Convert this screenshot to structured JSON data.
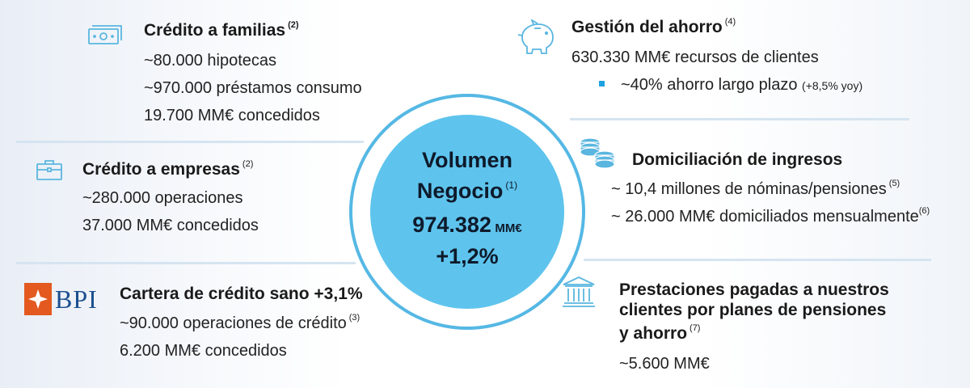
{
  "center": {
    "title_line1": "Volumen",
    "title_line2": "Negocio",
    "note": "(1)",
    "value": "974.382",
    "unit": "MM€",
    "change": "+1,2%"
  },
  "credito_familias": {
    "title": "Crédito a familias",
    "note": "(2)",
    "lines": [
      "~80.000 hipotecas",
      "~970.000 préstamos consumo",
      "19.700 MM€ concedidos"
    ]
  },
  "credito_empresas": {
    "title": "Crédito a empresas",
    "note": "(2)",
    "lines": [
      "~280.000 operaciones",
      "37.000 MM€ concedidos"
    ]
  },
  "bpi": {
    "logo_text": "BPI",
    "title": "Cartera de crédito sano +3,1%",
    "line1": "~90.000 operaciones de crédito",
    "line1_note": "(3)",
    "line2": "6.200 MM€ concedidos"
  },
  "gestion_ahorro": {
    "title": "Gestión del ahorro",
    "note": "(4)",
    "line1": "630.330 MM€ recursos de clientes",
    "bullet_text": "~40% ahorro largo plazo",
    "bullet_suffix": "(+8,5% yoy)"
  },
  "domiciliacion": {
    "title": "Domiciliación de ingresos",
    "line1": "~ 10,4 millones de nóminas/pensiones",
    "line1_note": "(5)",
    "line2": "~ 26.000 MM€ domiciliados mensualmente",
    "line2_note": "(6)"
  },
  "prestaciones": {
    "title_line1": "Prestaciones pagadas a nuestros",
    "title_line2": "clientes por planes de pensiones",
    "title_line3": "y ahorro",
    "note": "(7)",
    "value": "~5.600 MM€"
  },
  "icons": [
    "banknote-icon",
    "briefcase-icon",
    "piggy-bank-icon",
    "coins-icon",
    "bank-building-icon"
  ],
  "colors": {
    "accent": "#5ec4ed",
    "ring": "#55b8e4",
    "bullet": "#1ea1e1",
    "bpi_orange": "#e3591f",
    "bpi_blue": "#1b4f8f"
  }
}
